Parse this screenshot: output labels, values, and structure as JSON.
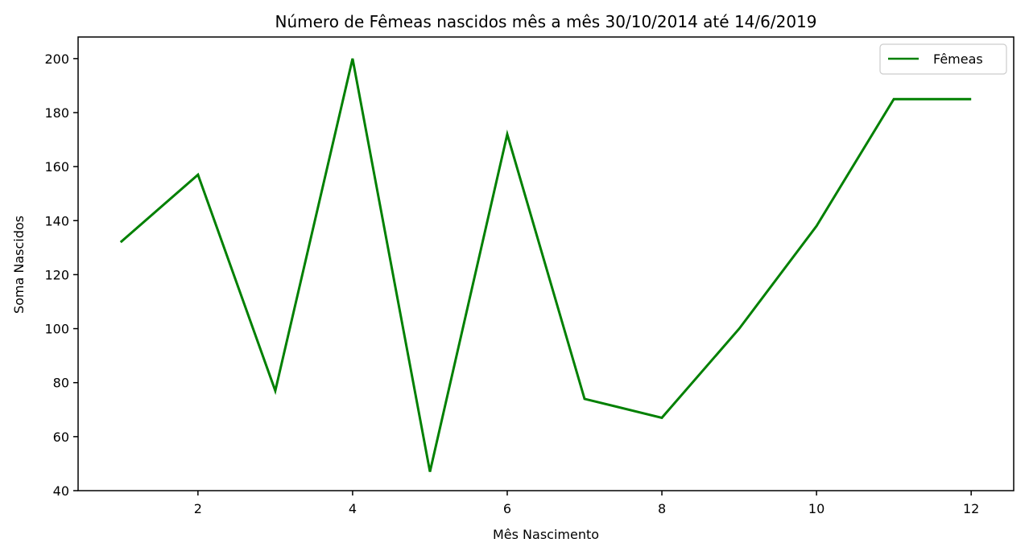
{
  "chart_data": {
    "type": "line",
    "title": "Número de Fêmeas nascidos mês a mês 30/10/2014 até 14/6/2019",
    "xlabel": "Mês Nascimento",
    "ylabel": "Soma Nascidos",
    "x": [
      1,
      2,
      3,
      4,
      5,
      6,
      7,
      8,
      9,
      10,
      11,
      12
    ],
    "series": [
      {
        "name": "Fêmeas",
        "color": "#008000",
        "values": [
          132,
          157,
          77,
          200,
          47,
          172,
          74,
          67,
          100,
          138,
          185,
          185
        ]
      }
    ],
    "xlim": [
      0.45,
      12.55
    ],
    "ylim": [
      40,
      208
    ],
    "xticks": [
      2,
      4,
      6,
      8,
      10,
      12
    ],
    "yticks": [
      40,
      60,
      80,
      100,
      120,
      140,
      160,
      180,
      200
    ],
    "grid": false,
    "legend_position": "top-right"
  }
}
